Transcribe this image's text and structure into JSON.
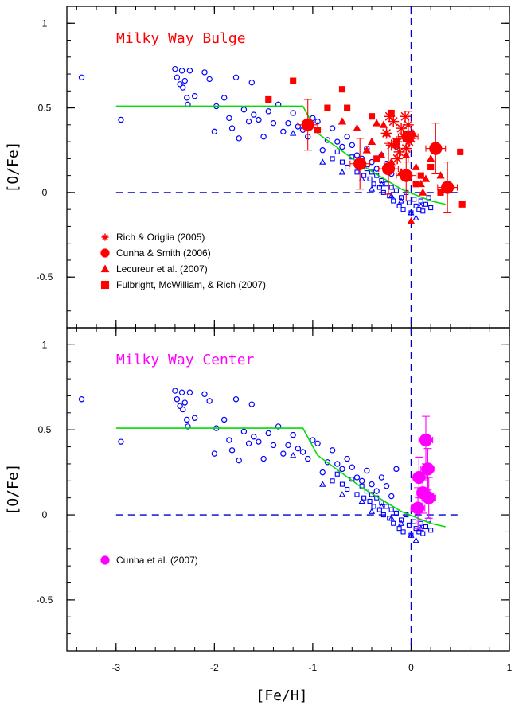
{
  "chart_data": {
    "type": "scatter",
    "xlabel": "[Fe/H]",
    "xlim": [
      -3.5,
      1.0
    ],
    "x_ticks": [
      "-3",
      "-2",
      "-1",
      "0",
      "1"
    ],
    "ylim": [
      -0.8,
      1.1
    ],
    "y_ticks": [
      "1",
      "0.5",
      "0",
      "-0.5"
    ],
    "colors": {
      "disk": "#0000ff",
      "bulge": "#ff0000",
      "center": "#ff00ff",
      "model": "#00dd00",
      "reference": "#0000cc"
    },
    "panels": [
      {
        "title": "Milky Way Bulge",
        "title_color": "#ff0000",
        "ylabel": "[O/Fe]",
        "legend_position": "lower-left",
        "legend": [
          {
            "label": "Rich & Origlia (2005)",
            "marker": "asterisk"
          },
          {
            "label": "Cunha & Smith (2006)",
            "marker": "circle"
          },
          {
            "label": "Lecureur et al. (2007)",
            "marker": "triangle"
          },
          {
            "label": "Fulbright, McWilliam, & Rich (2007)",
            "marker": "square"
          }
        ]
      },
      {
        "title": "Milky Way Center",
        "title_color": "#ff00ff",
        "ylabel": "[O/Fe]",
        "legend_position": "lower-left",
        "legend": [
          {
            "label": "Cunha et al. (2007)",
            "marker": "circle"
          }
        ]
      }
    ],
    "model_line": {
      "x": [
        -3.0,
        -1.1,
        -0.95,
        -0.5,
        -0.1,
        0.2,
        0.35
      ],
      "y": [
        0.51,
        0.51,
        0.35,
        0.16,
        0.02,
        -0.05,
        -0.07
      ]
    },
    "reference_lines": {
      "y_zero": {
        "x": [
          -3.0,
          0.5
        ]
      },
      "x_zero": 0
    },
    "disk_circles": {
      "x": [
        -3.35,
        -2.95,
        -2.4,
        -2.38,
        -2.35,
        -2.33,
        -2.32,
        -2.3,
        -2.28,
        -2.27,
        -2.25,
        -2.2,
        -2.1,
        -2.05,
        -2.0,
        -1.98,
        -1.9,
        -1.85,
        -1.82,
        -1.78,
        -1.75,
        -1.7,
        -1.65,
        -1.62,
        -1.6,
        -1.55,
        -1.5,
        -1.45,
        -1.4,
        -1.35,
        -1.3,
        -1.25,
        -1.2,
        -1.15,
        -1.1,
        -1.05,
        -1.0,
        -0.95,
        -0.9,
        -0.85,
        -0.8,
        -0.75,
        -0.7,
        -0.65,
        -0.6,
        -0.55,
        -0.5,
        -0.45,
        -0.4,
        -0.35,
        -0.3,
        -0.25,
        -0.2,
        -0.15
      ],
      "y": [
        0.68,
        0.43,
        0.73,
        0.68,
        0.64,
        0.72,
        0.62,
        0.66,
        0.56,
        0.52,
        0.72,
        0.57,
        0.71,
        0.67,
        0.36,
        0.51,
        0.56,
        0.44,
        0.38,
        0.68,
        0.32,
        0.49,
        0.42,
        0.65,
        0.46,
        0.43,
        0.33,
        0.48,
        0.41,
        0.52,
        0.36,
        0.41,
        0.47,
        0.39,
        0.37,
        0.33,
        0.44,
        0.42,
        0.25,
        0.31,
        0.38,
        0.3,
        0.27,
        0.33,
        0.28,
        0.22,
        0.2,
        0.26,
        0.18,
        0.14,
        0.22,
        0.17,
        0.11,
        0.27
      ]
    },
    "disk_squares": {
      "x": [
        -0.8,
        -0.75,
        -0.7,
        -0.65,
        -0.6,
        -0.55,
        -0.5,
        -0.48,
        -0.45,
        -0.42,
        -0.4,
        -0.38,
        -0.35,
        -0.32,
        -0.3,
        -0.28,
        -0.25,
        -0.22,
        -0.2,
        -0.18,
        -0.15,
        -0.12,
        -0.1,
        -0.08,
        -0.05,
        -0.02,
        0.0,
        0.03,
        0.05,
        0.08,
        0.1,
        0.12,
        0.15,
        0.18,
        0.2
      ],
      "y": [
        0.2,
        0.24,
        0.18,
        0.15,
        0.21,
        0.12,
        0.17,
        0.1,
        0.14,
        0.08,
        0.12,
        0.05,
        0.1,
        0.03,
        0.07,
        0.0,
        0.05,
        -0.02,
        0.03,
        -0.05,
        0.01,
        -0.08,
        -0.03,
        -0.1,
        0.0,
        -0.06,
        -0.12,
        -0.04,
        -0.08,
        -0.1,
        -0.05,
        -0.11,
        -0.07,
        -0.03,
        -0.09
      ]
    },
    "disk_triangles": {
      "x": [
        -1.2,
        -0.9,
        -0.7,
        -0.5,
        -0.4,
        -0.3,
        -0.2,
        -0.1,
        0.0,
        0.05,
        0.1
      ],
      "y": [
        0.35,
        0.18,
        0.12,
        0.08,
        0.02,
        0.05,
        -0.02,
        -0.05,
        -0.12,
        -0.15,
        -0.08
      ]
    },
    "series": [
      {
        "name": "Rich & Origlia (2005)",
        "panel": 0,
        "marker": "asterisk",
        "x": [
          -0.25,
          -0.2,
          -0.18,
          -0.15,
          -0.12,
          -0.1,
          -0.08,
          -0.05,
          -0.03,
          0.0,
          -0.22,
          -0.14,
          -0.06,
          -0.02
        ],
        "y": [
          0.35,
          0.28,
          0.42,
          0.3,
          0.24,
          0.38,
          0.33,
          0.26,
          0.4,
          0.32,
          0.45,
          0.2,
          0.45,
          0.3
        ]
      },
      {
        "name": "Cunha & Smith (2006)",
        "panel": 0,
        "marker": "circle",
        "x": [
          -1.05,
          -0.52,
          -0.23,
          -0.05,
          -0.03,
          0.25,
          0.37
        ],
        "y": [
          0.4,
          0.17,
          0.14,
          0.1,
          0.33,
          0.26,
          0.03
        ],
        "xerr": [
          0.1,
          0.1,
          0.1,
          0.1,
          0.1,
          0.1,
          0.1
        ],
        "yerr": [
          0.15,
          0.15,
          0.15,
          0.15,
          0.15,
          0.15,
          0.15
        ]
      },
      {
        "name": "Lecureur et al. (2007)",
        "panel": 0,
        "marker": "triangle",
        "x": [
          -0.7,
          -0.55,
          -0.4,
          -0.35,
          -0.3,
          -0.25,
          -0.2,
          -0.15,
          -0.1,
          -0.05,
          0.0,
          0.05,
          0.1,
          0.15,
          0.2,
          0.3,
          -0.45,
          -0.28,
          0.02,
          0.12
        ],
        "y": [
          0.42,
          0.38,
          0.3,
          0.41,
          0.22,
          0.35,
          0.18,
          0.28,
          0.12,
          0.22,
          -0.17,
          0.15,
          0.05,
          0.08,
          0.2,
          0.1,
          0.25,
          0.4,
          0.35,
          0.0
        ]
      },
      {
        "name": "Fulbright, McWilliam, & Rich (2007)",
        "panel": 0,
        "marker": "square",
        "x": [
          -1.45,
          -1.2,
          -0.95,
          -0.85,
          -0.7,
          -0.65,
          -0.4,
          -0.35,
          -0.2,
          -0.15,
          0.05,
          0.1,
          0.2,
          0.3,
          0.5,
          0.52
        ],
        "y": [
          0.55,
          0.66,
          0.37,
          0.5,
          0.61,
          0.5,
          0.45,
          0.2,
          0.47,
          0.3,
          0.05,
          0.1,
          0.15,
          0.0,
          0.24,
          -0.07
        ]
      },
      {
        "name": "Cunha et al. (2007)",
        "panel": 1,
        "marker": "circle",
        "x": [
          0.07,
          0.08,
          0.12,
          0.15,
          0.17,
          0.18
        ],
        "y": [
          0.04,
          0.22,
          0.13,
          0.44,
          0.27,
          0.1
        ],
        "xerr": [
          0.07,
          0.07,
          0.07,
          0.07,
          0.07,
          0.07
        ],
        "yerr": [
          0.12,
          0.12,
          0.12,
          0.14,
          0.12,
          0.12
        ]
      }
    ]
  }
}
